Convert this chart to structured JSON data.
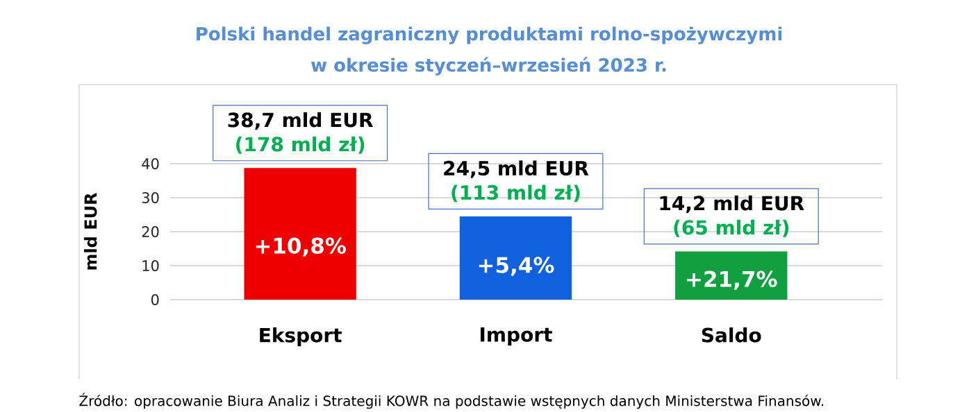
{
  "chart_data": {
    "type": "bar",
    "title": "Polski handel zagraniczny produktami rolno-spożywczymi w okresie styczeń–wrzesień 2023 r.",
    "ylabel": "mld EUR",
    "categories": [
      "Eksport",
      "Import",
      "Saldo"
    ],
    "values": [
      38.7,
      24.5,
      14.2
    ],
    "colors": [
      "#ee0000",
      "#1060e0",
      "#10a040"
    ],
    "value_labels": [
      "38,7 mld EUR",
      "24,5 mld EUR",
      "14,2 mld EUR"
    ],
    "ylim": [
      0,
      40
    ],
    "yticks": [
      0,
      10,
      20,
      30,
      40
    ],
    "grid": "y",
    "annotations": [
      {
        "text": "(178 mld zł)",
        "x": "Eksport",
        "y": 38.7
      },
      {
        "text": "(113 mld zł)",
        "x": "Import",
        "y": 24.5
      },
      {
        "text": "(65 mld zł)",
        "x": "Saldo",
        "y": 14.2
      },
      "+10,8%",
      "+5,4%",
      "+21,7%",
      "Źródło: opracowanie Biura Analiz i Strategii KOWR na podstawie wstępnych danych Ministerstwa Finansów."
    ]
  }
}
